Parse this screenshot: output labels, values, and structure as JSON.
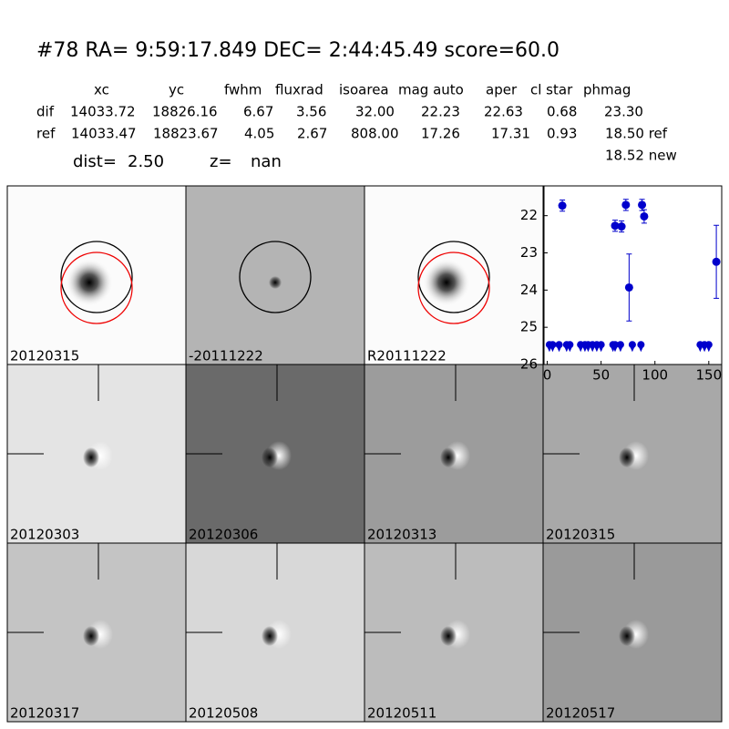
{
  "header": {
    "title": "#78   RA= 9:59:17.849 DEC= 2:44:45.49       score=60.0",
    "dist_label": "dist=",
    "dist": "2.50",
    "z_label": "z=",
    "z": "nan"
  },
  "table": {
    "columns": [
      "xc",
      "yc",
      "fwhm",
      "fluxrad",
      "isoarea",
      "mag auto",
      "aper",
      "cl star",
      "phmag"
    ],
    "rows": [
      {
        "label": "dif",
        "cells": [
          "14033.72",
          "18826.16",
          "6.67",
          "3.56",
          "32.00",
          "22.23",
          "22.63",
          "0.68",
          "23.30"
        ]
      },
      {
        "label": "ref",
        "cells": [
          "14033.47",
          "18823.67",
          "4.05",
          "2.67",
          "808.00",
          "17.26",
          "17.31",
          "0.93",
          "18.50 ref"
        ]
      }
    ],
    "note": "18.52 new"
  },
  "panels": [
    {
      "label": "20120315"
    },
    {
      "label": "-20111222"
    },
    {
      "label": "R20111222"
    },
    {
      "label": "20120303"
    },
    {
      "label": "20120306"
    },
    {
      "label": "20120313"
    },
    {
      "label": "20120315",
      "color": "#ff0000"
    },
    {
      "label": "20120317"
    },
    {
      "label": "20120508"
    },
    {
      "label": "20120511"
    },
    {
      "label": "20120517"
    }
  ],
  "chart_data": {
    "type": "scatter",
    "xlim": [
      -3,
      162
    ],
    "xticks": [
      0,
      50,
      100,
      150
    ],
    "ylim": [
      26,
      21.2
    ],
    "yticks": [
      22,
      23,
      24,
      25,
      26
    ],
    "series": [
      {
        "color": "#0000cc",
        "marker": "circle",
        "x": [
          14,
          63,
          69,
          73,
          76,
          88,
          90,
          157
        ],
        "values": [
          21.73,
          22.27,
          22.29,
          21.71,
          23.93,
          21.71,
          22.02,
          23.24
        ],
        "errors": [
          0.15,
          0.15,
          0.15,
          0.15,
          0.9,
          0.15,
          0.18,
          0.98
        ]
      },
      {
        "color": "#0000cc",
        "marker": "upper-limit",
        "x": [
          2,
          5,
          11,
          18,
          21,
          31,
          35,
          38,
          42,
          46,
          50,
          61,
          63,
          68,
          79,
          87,
          142,
          146,
          150
        ],
        "values": [
          25.54,
          25.54,
          25.54,
          25.54,
          25.54,
          25.54,
          25.54,
          25.54,
          25.54,
          25.54,
          25.54,
          25.54,
          25.54,
          25.54,
          25.54,
          25.54,
          25.54,
          25.54,
          25.54
        ]
      }
    ]
  }
}
